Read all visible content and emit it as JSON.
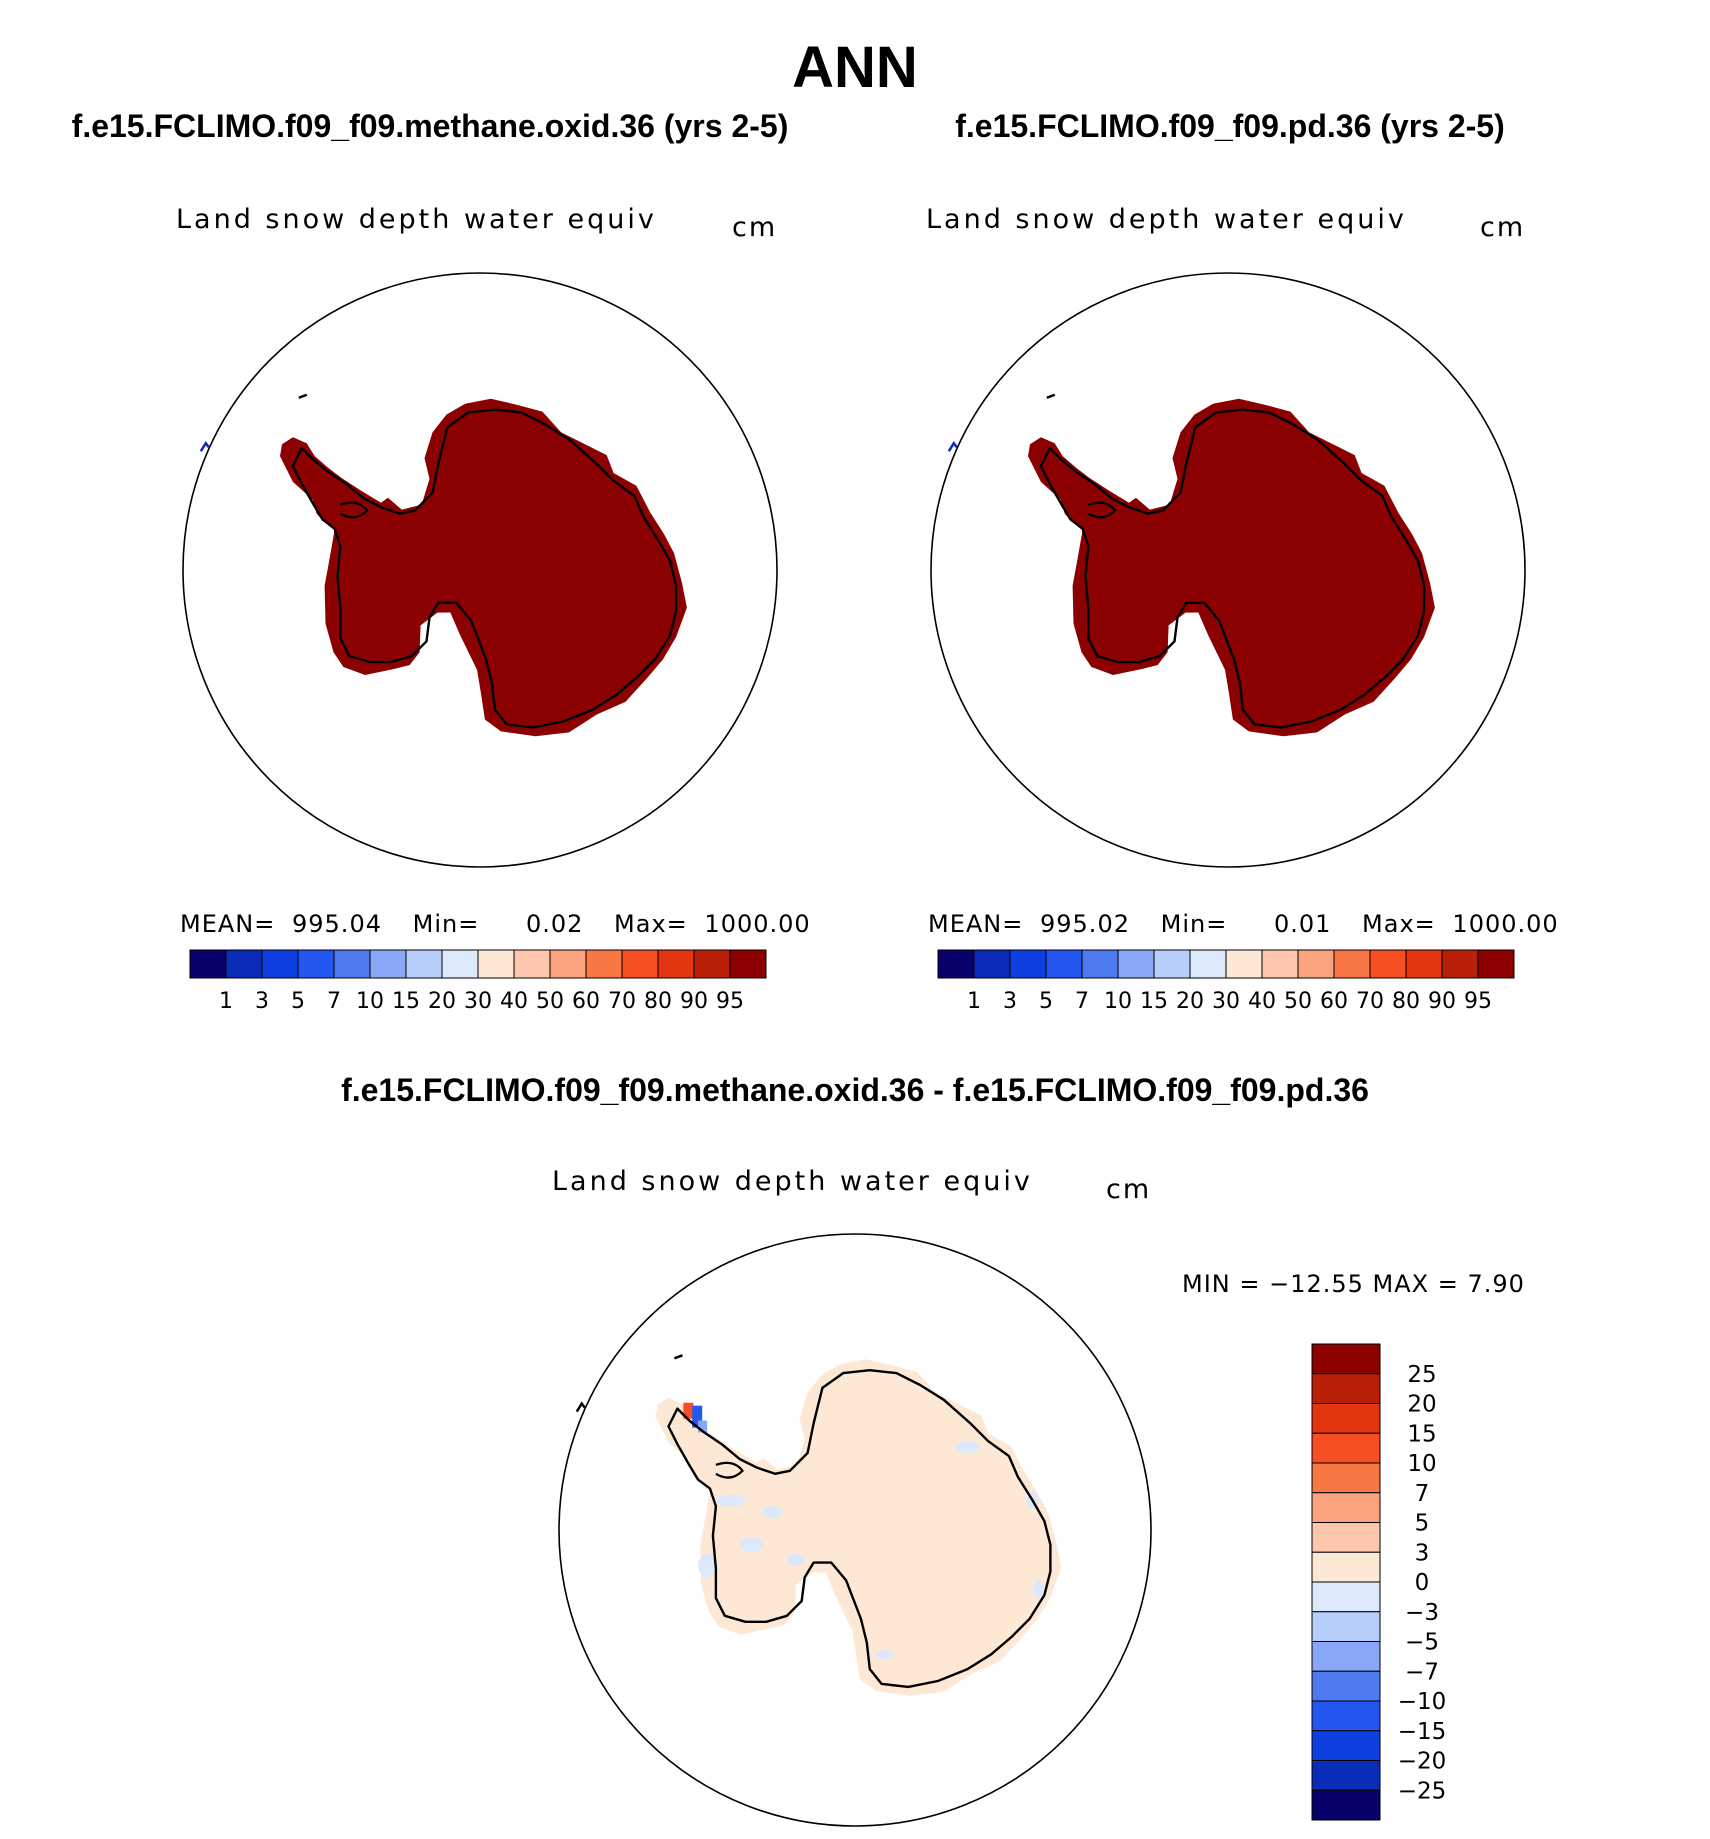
{
  "figure_title": "ANN",
  "panels": [
    {
      "case_title": "f.e15.FCLIMO.f09_f09.methane.oxid.36 (yrs 2-5)",
      "variable": "Land snow depth water equiv",
      "units": "cm",
      "stats": {
        "mean_label": "MEAN=",
        "mean": "995.04",
        "min_label": "Min=",
        "min": "0.02",
        "max_label": "Max=",
        "max": "1000.00"
      }
    },
    {
      "case_title": "f.e15.FCLIMO.f09_f09.pd.36 (yrs 2-5)",
      "variable": "Land snow depth water equiv",
      "units": "cm",
      "stats": {
        "mean_label": "MEAN=",
        "mean": "995.02",
        "min_label": "Min=",
        "min": "0.01",
        "max_label": "Max=",
        "max": "1000.00"
      }
    }
  ],
  "difference": {
    "title": "f.e15.FCLIMO.f09_f09.methane.oxid.36 - f.e15.FCLIMO.f09_f09.pd.36",
    "variable": "Land snow depth water equiv",
    "units": "cm",
    "stats_text": "MIN = −12.55 MAX =    7.90"
  },
  "chart_data": [
    {
      "type": "heatmap",
      "projection": "south-polar-stereographic",
      "title": "f.e15.FCLIMO.f09_f09.methane.oxid.36 (yrs 2-5)",
      "variable": "Land snow depth water equiv",
      "units": "cm",
      "mean": 995.04,
      "min": 0.02,
      "max": 1000.0,
      "colorbar_levels": [
        1,
        3,
        5,
        7,
        10,
        15,
        20,
        30,
        40,
        50,
        60,
        70,
        80,
        90,
        95
      ],
      "colorbar_orientation": "horizontal",
      "fill_over_land": ">95"
    },
    {
      "type": "heatmap",
      "projection": "south-polar-stereographic",
      "title": "f.e15.FCLIMO.f09_f09.pd.36 (yrs 2-5)",
      "variable": "Land snow depth water equiv",
      "units": "cm",
      "mean": 995.02,
      "min": 0.01,
      "max": 1000.0,
      "colorbar_levels": [
        1,
        3,
        5,
        7,
        10,
        15,
        20,
        30,
        40,
        50,
        60,
        70,
        80,
        90,
        95
      ],
      "colorbar_orientation": "horizontal",
      "fill_over_land": ">95"
    },
    {
      "type": "heatmap",
      "projection": "south-polar-stereographic",
      "title": "f.e15.FCLIMO.f09_f09.methane.oxid.36 - f.e15.FCLIMO.f09_f09.pd.36",
      "variable": "Land snow depth water equiv",
      "units": "cm",
      "min": -12.55,
      "max": 7.9,
      "colorbar_levels": [
        25,
        20,
        15,
        10,
        7,
        5,
        3,
        0,
        -3,
        -5,
        -7,
        -10,
        -15,
        -20,
        -25
      ],
      "colorbar_tick_labels": [
        "25",
        "20",
        "15",
        "10",
        "7",
        "5",
        "3",
        "0",
        "−3",
        "−5",
        "−7",
        "−10",
        "−15",
        "−20",
        "−25"
      ],
      "colorbar_orientation": "vertical",
      "fill_over_land": "0 to 3"
    }
  ],
  "colors": {
    "seq_palette": [
      "#08006b",
      "#0a2cb8",
      "#0e3fe0",
      "#2456f0",
      "#4d7aef",
      "#88a8f7",
      "#b7cdfa",
      "#dbe9fb",
      "#fde7d5",
      "#fcc7ac",
      "#fba27f",
      "#f97645",
      "#f74e22",
      "#e33610",
      "#ba2008",
      "#8c0000"
    ],
    "diff_palette": [
      "#8c0000",
      "#ba2008",
      "#e33610",
      "#f74e22",
      "#f97645",
      "#fba27f",
      "#fcc7ac",
      "#fde7d5",
      "#dbe9fb",
      "#b7cdfa",
      "#88a8f7",
      "#4d7aef",
      "#2456f0",
      "#0e3fe0",
      "#0a2cb8",
      "#08006b"
    ],
    "land_fill_full": "#8b0000",
    "land_fill_diff": "#fde8d6",
    "coast": "#000000"
  }
}
